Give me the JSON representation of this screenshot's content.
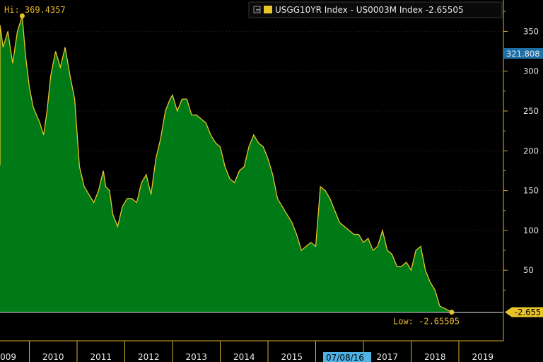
{
  "chart_data": {
    "type": "area",
    "legend": {
      "label": "USGG10YR Index - US0003M Index -2.65505",
      "placement": "top-right"
    },
    "high_annotation": {
      "label": "Hi: 369.4357",
      "value": 369.4357,
      "date": "2009.85"
    },
    "low_annotation": {
      "label": "Low: -2.65505",
      "value": -2.65505,
      "date": "2018.85"
    },
    "last_value_box": "321.808",
    "current_value_box": "-2.655",
    "date_marker": "07/08/16",
    "y_ticks": [
      "350",
      "300",
      "250",
      "200",
      "150",
      "100",
      "50"
    ],
    "x_tick_labels": [
      "2009",
      "2010",
      "2011",
      "2012",
      "2013",
      "2014",
      "2015",
      "2017",
      "2018",
      "2019"
    ],
    "ylim": [
      -15,
      390
    ],
    "grid": true,
    "colors": {
      "fill": "#007a17",
      "line": "#e8c42a",
      "axis": "#d4b030",
      "background": "#000000"
    },
    "series": [
      {
        "x": [
          2008.55,
          2008.65,
          2008.75,
          2008.85,
          2008.95,
          2009.05,
          2009.15,
          2009.25,
          2009.35,
          2009.45,
          2009.55,
          2009.65,
          2009.75,
          2009.85,
          2009.92,
          2010.0,
          2010.08,
          2010.15,
          2010.22,
          2010.3,
          2010.37,
          2010.45,
          2010.55,
          2010.65,
          2010.75,
          2010.85,
          2010.95,
          2011.05,
          2011.15,
          2011.25,
          2011.35,
          2011.45,
          2011.55,
          2011.6,
          2011.68,
          2011.75,
          2011.85,
          2011.95,
          2012.05,
          2012.15,
          2012.25,
          2012.35,
          2012.45,
          2012.55,
          2012.65,
          2012.75,
          2012.85,
          2012.95,
          2013.0,
          2013.1,
          2013.2,
          2013.3,
          2013.4,
          2013.5,
          2013.6,
          2013.7,
          2013.8,
          2013.9,
          2014.0,
          2014.1,
          2014.2,
          2014.3,
          2014.4,
          2014.5,
          2014.6,
          2014.7,
          2014.8,
          2014.9,
          2015.0,
          2015.1,
          2015.2,
          2015.3,
          2015.4,
          2015.5,
          2015.6,
          2015.7,
          2015.8,
          2015.9,
          2016.0,
          2016.1,
          2016.2,
          2016.3,
          2016.4,
          2016.5,
          2016.6,
          2016.7,
          2016.8,
          2016.9,
          2017.0,
          2017.1,
          2017.2,
          2017.3,
          2017.4,
          2017.5,
          2017.6,
          2017.7,
          2017.8,
          2017.9,
          2018.0,
          2018.1,
          2018.2,
          2018.3,
          2018.4,
          2018.5,
          2018.6,
          2018.7,
          2018.85
        ],
        "values": [
          182,
          335,
          320,
          315,
          305,
          330,
          320,
          300,
          358,
          330,
          350,
          310,
          350,
          369.4,
          320,
          280,
          255,
          245,
          235,
          220,
          250,
          295,
          325,
          305,
          330,
          295,
          265,
          180,
          155,
          145,
          135,
          150,
          175,
          155,
          150,
          120,
          105,
          130,
          140,
          140,
          135,
          160,
          170,
          145,
          190,
          215,
          250,
          265,
          270,
          250,
          265,
          265,
          245,
          245,
          240,
          235,
          220,
          210,
          205,
          180,
          165,
          160,
          175,
          180,
          205,
          220,
          210,
          205,
          190,
          170,
          140,
          130,
          120,
          110,
          95,
          75,
          80,
          85,
          80,
          155,
          150,
          140,
          125,
          110,
          105,
          100,
          95,
          95,
          85,
          90,
          75,
          80,
          100,
          75,
          70,
          55,
          55,
          60,
          50,
          75,
          80,
          50,
          35,
          25,
          5,
          2,
          -2.65505
        ]
      }
    ]
  }
}
